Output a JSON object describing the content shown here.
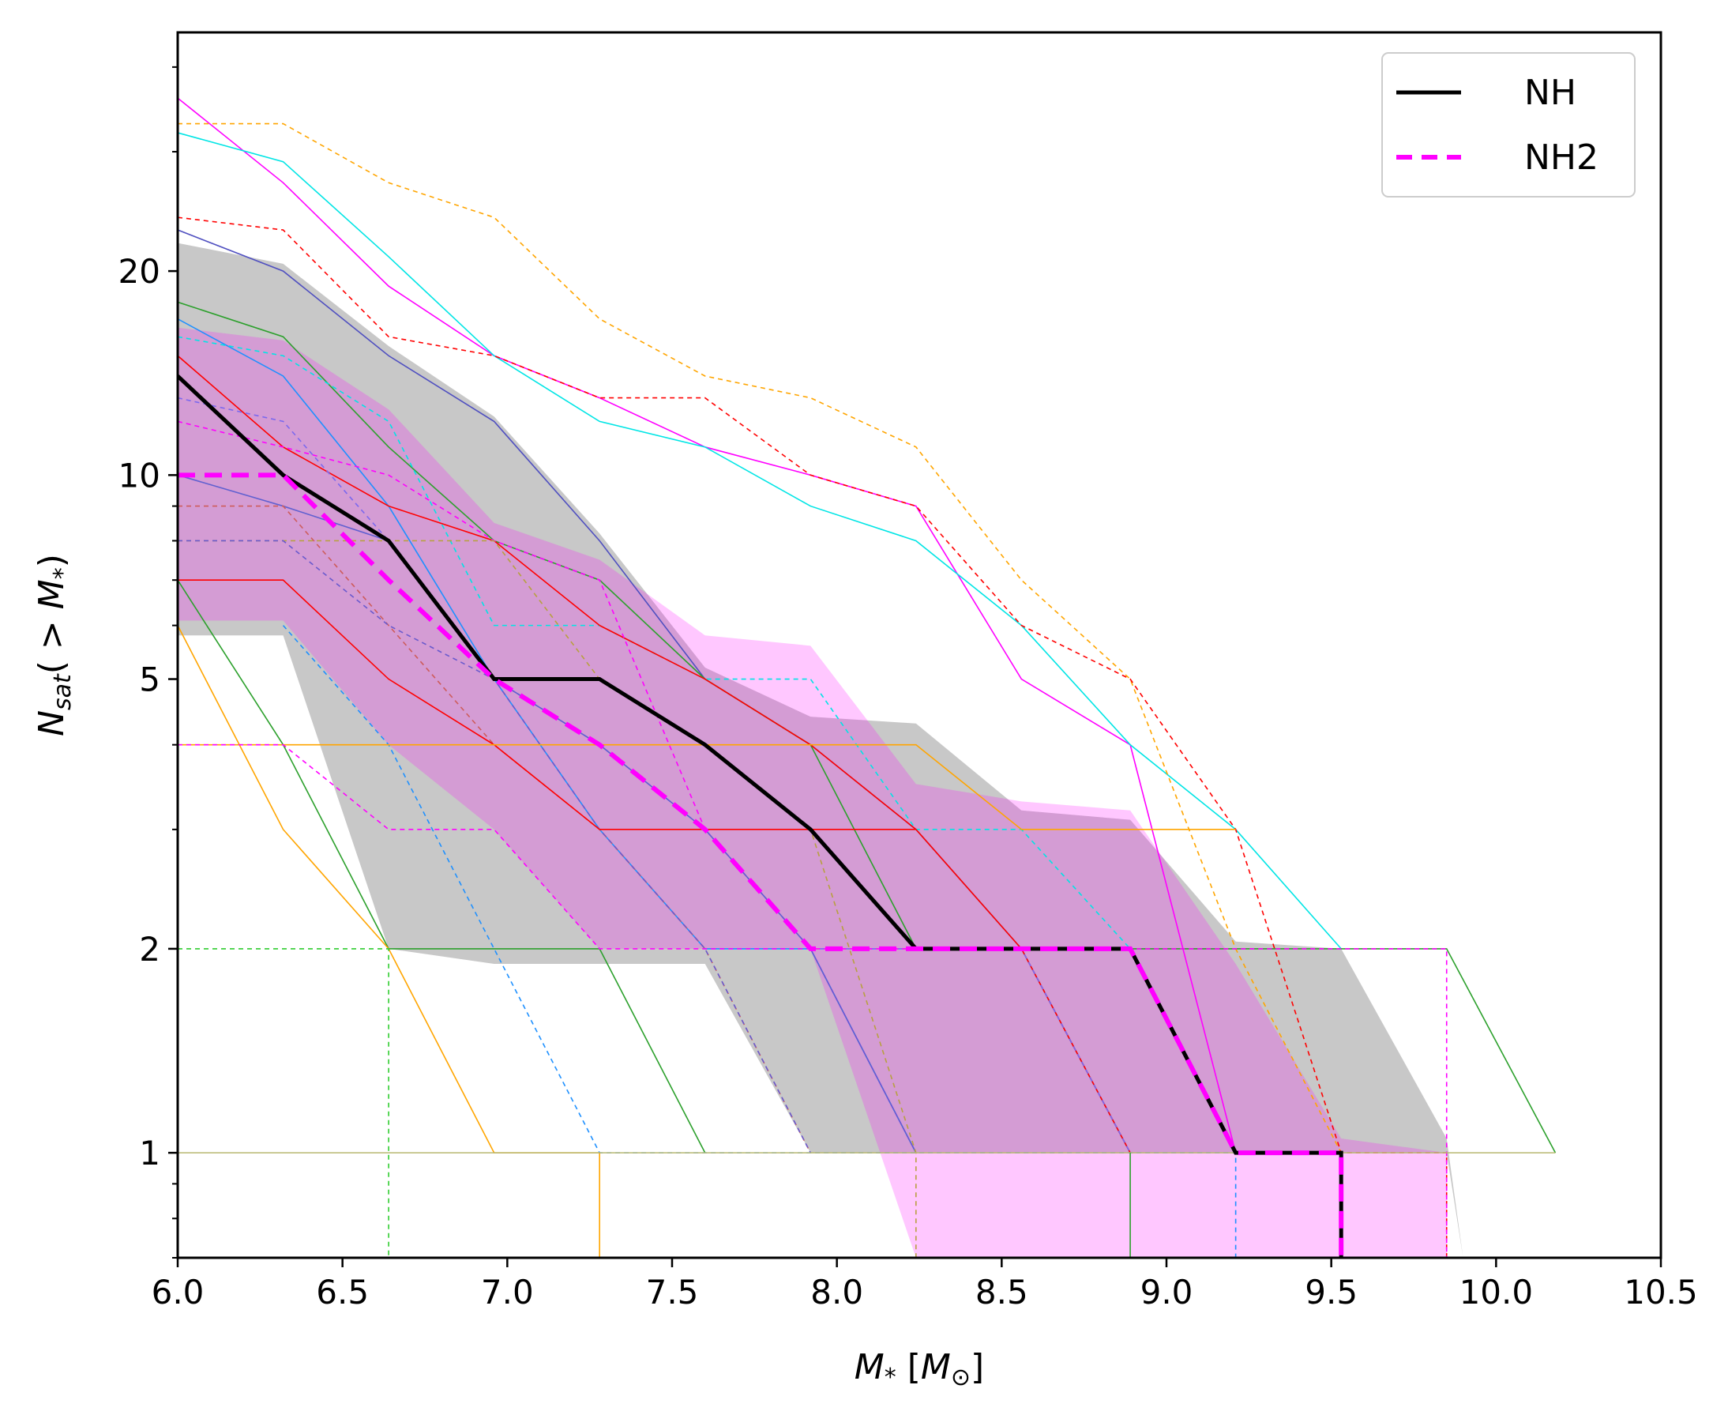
{
  "chart_data": {
    "type": "line",
    "xlabel": "M_* [M_⊙]",
    "ylabel": "N_sat(>M_*)",
    "xlim": [
      6.0,
      10.5
    ],
    "ylim": [
      0.7,
      45
    ],
    "yscale": "log",
    "grid": false,
    "legend_position": "top-right",
    "xticks": [
      6.0,
      6.5,
      7.0,
      7.5,
      8.0,
      8.5,
      9.0,
      9.5,
      10.0,
      10.5
    ],
    "xtick_labels": [
      "6.0",
      "6.5",
      "7.0",
      "7.5",
      "8.0",
      "8.5",
      "9.0",
      "9.5",
      "10.0",
      "10.5"
    ],
    "yticks": [
      1,
      2,
      5,
      10,
      20
    ],
    "ytick_labels": [
      "1",
      "2",
      "5",
      "10",
      "20"
    ],
    "legend": [
      {
        "label": "NH",
        "color": "#000000",
        "style": "solid"
      },
      {
        "label": "NH2",
        "color": "#ff00ff",
        "style": "dashed"
      }
    ],
    "bands": [
      {
        "label": "NH",
        "color": "#c8c8c8",
        "x": [
          6.0,
          6.32,
          6.64,
          6.96,
          7.28,
          7.6,
          7.92,
          8.24,
          8.56,
          8.89,
          9.21,
          9.53,
          9.85,
          9.9
        ],
        "upper": [
          22,
          20.5,
          15.5,
          12.2,
          8.2,
          5.2,
          4.4,
          4.3,
          3.2,
          3.1,
          2.05,
          2.0,
          1.05,
          0.7
        ],
        "lower": [
          5.8,
          5.8,
          2.0,
          1.9,
          1.9,
          1.9,
          1.0,
          1.0,
          1.0,
          1.0,
          1.0,
          1.0,
          1.0,
          0.7
        ]
      },
      {
        "label": "NH2",
        "color": "#ff00ff",
        "x": [
          6.0,
          6.32,
          6.64,
          6.96,
          7.28,
          7.6,
          7.92,
          8.24,
          8.56,
          8.89,
          9.21,
          9.53,
          9.85
        ],
        "upper": [
          16.5,
          15.8,
          12.5,
          8.5,
          7.5,
          5.8,
          5.6,
          3.5,
          3.3,
          3.2,
          1.9,
          1.05,
          1.0
        ],
        "lower": [
          6.1,
          6.1,
          4.0,
          3.0,
          2.0,
          2.0,
          2.0,
          0.7,
          0.7,
          0.7,
          0.7,
          0.7,
          0.7
        ]
      }
    ],
    "series": [
      {
        "name": "NH",
        "color": "#000000",
        "style": "solid",
        "width": 5,
        "x": [
          6.0,
          6.32,
          6.64,
          6.96,
          7.28,
          7.6,
          7.92,
          8.24,
          8.56,
          8.89,
          9.21,
          9.53,
          9.53
        ],
        "y": [
          14,
          10,
          8,
          5,
          5,
          4,
          3,
          2,
          2,
          2,
          1,
          1,
          0.7
        ]
      },
      {
        "name": "NH2",
        "color": "#ff00ff",
        "style": "dashed",
        "width": 6,
        "x": [
          6.0,
          6.32,
          6.64,
          6.96,
          7.28,
          7.6,
          7.92,
          8.24,
          8.56,
          8.89,
          9.21,
          9.53,
          9.53
        ],
        "y": [
          10,
          10,
          7,
          5,
          4,
          3,
          2,
          2,
          2,
          2,
          1,
          1,
          0.7
        ]
      }
    ],
    "individual_lines": [
      {
        "color": "#ff00ff",
        "style": "solid",
        "x": [
          6.0,
          6.32,
          6.64,
          6.96,
          7.28,
          7.6,
          7.92,
          8.24,
          8.56,
          8.89,
          9.21
        ],
        "y": [
          36,
          27,
          19,
          15,
          13,
          11,
          10,
          9,
          5,
          4,
          1
        ]
      },
      {
        "color": "#00e5e5",
        "style": "solid",
        "x": [
          6.0,
          6.32,
          6.64,
          6.96,
          7.28,
          7.6,
          7.92,
          8.24,
          8.56,
          8.89,
          9.21,
          9.53
        ],
        "y": [
          32,
          29,
          21,
          15,
          12,
          11,
          9,
          8,
          6,
          4,
          3,
          2
        ]
      },
      {
        "color": "#ffa500",
        "style": "dashed",
        "x": [
          6.0,
          6.32,
          6.64,
          6.96,
          7.28,
          7.6,
          7.92,
          8.24,
          8.56,
          8.89,
          9.21,
          9.53
        ],
        "y": [
          33,
          33,
          27,
          24,
          17,
          14,
          13,
          11,
          7,
          5,
          2,
          1
        ]
      },
      {
        "color": "#ff0000",
        "style": "dashed",
        "x": [
          6.0,
          6.32,
          6.64,
          6.96,
          7.28,
          7.6,
          7.92,
          8.24,
          8.56,
          8.89,
          9.21,
          9.53,
          9.85,
          9.85
        ],
        "y": [
          24,
          23,
          16,
          15,
          13,
          13,
          10,
          9,
          6,
          5,
          3,
          1,
          1,
          0.7
        ]
      },
      {
        "color": "#5050c0",
        "style": "solid",
        "x": [
          6.0,
          6.32,
          6.64,
          6.96,
          7.28,
          7.6,
          7.92,
          8.24,
          8.56,
          8.89
        ],
        "y": [
          23,
          20,
          15,
          12,
          8,
          5,
          4,
          3,
          2,
          1
        ]
      },
      {
        "color": "#2ca02c",
        "style": "solid",
        "x": [
          6.0,
          6.32,
          6.64,
          6.96,
          7.28,
          7.6,
          7.92,
          8.24,
          8.56,
          8.89,
          9.21,
          9.53,
          9.85,
          10.18
        ],
        "y": [
          18,
          16,
          11,
          8,
          7,
          5,
          4,
          2,
          2,
          2,
          2,
          2,
          2,
          1
        ]
      },
      {
        "color": "#1e90ff",
        "style": "solid",
        "x": [
          6.0,
          6.32,
          6.64,
          6.96,
          7.28,
          7.6,
          7.92,
          8.24
        ],
        "y": [
          17,
          14,
          9,
          5,
          3,
          2,
          2,
          1
        ]
      },
      {
        "color": "#00e5e5",
        "style": "dashed",
        "x": [
          6.0,
          6.32,
          6.64,
          6.96,
          7.28,
          7.6,
          7.92,
          8.24,
          8.56,
          8.89,
          9.21,
          9.53
        ],
        "y": [
          16,
          15,
          12,
          6,
          6,
          5,
          5,
          3,
          3,
          2,
          1,
          1
        ]
      },
      {
        "color": "#ff0000",
        "style": "solid",
        "x": [
          6.0,
          6.32,
          6.64,
          6.96,
          7.28,
          7.6,
          7.92,
          8.24,
          8.56,
          8.89
        ],
        "y": [
          15,
          11,
          9,
          8,
          6,
          5,
          4,
          3,
          2,
          1
        ]
      },
      {
        "color": "#7b68ee",
        "style": "dashed",
        "x": [
          6.0,
          6.32,
          6.64,
          6.96,
          7.28,
          7.6,
          7.92,
          8.24,
          8.56,
          8.89
        ],
        "y": [
          13,
          12,
          8,
          5,
          4,
          3,
          2,
          2,
          2,
          1
        ]
      },
      {
        "color": "#ff00ff",
        "style": "dashed",
        "x": [
          6.0,
          6.32,
          6.64,
          6.96,
          7.28,
          7.6,
          7.92,
          8.24
        ],
        "y": [
          12,
          11,
          10,
          8,
          7,
          3,
          2,
          1
        ]
      },
      {
        "color": "#6060d0",
        "style": "solid",
        "x": [
          6.0,
          6.32,
          6.64,
          6.96,
          7.28,
          7.6,
          7.92,
          8.24
        ],
        "y": [
          10,
          9,
          8,
          5,
          4,
          3,
          2,
          1
        ]
      },
      {
        "color": "#cd5c5c",
        "style": "dashed",
        "x": [
          6.0,
          6.32,
          6.64,
          6.96,
          7.28,
          7.6,
          7.92
        ],
        "y": [
          9,
          9,
          6,
          4,
          3,
          2,
          1
        ]
      },
      {
        "color": "#b8a040",
        "style": "dashed",
        "x": [
          6.0,
          6.32,
          6.64,
          6.96,
          7.28,
          7.6,
          7.92,
          8.24,
          8.24
        ],
        "y": [
          8,
          8,
          8,
          8,
          5,
          4,
          3,
          1,
          0.7
        ]
      },
      {
        "color": "#6a5acd",
        "style": "dashed",
        "x": [
          6.0,
          6.32,
          6.64,
          6.96,
          7.28,
          7.6,
          7.92
        ],
        "y": [
          8,
          8,
          6,
          5,
          3,
          2,
          1
        ]
      },
      {
        "color": "#ff0000",
        "style": "solid",
        "x": [
          6.0,
          6.32,
          6.64,
          6.96,
          7.28,
          7.6,
          7.92,
          8.24
        ],
        "y": [
          7,
          7,
          5,
          4,
          3,
          3,
          3,
          3
        ]
      },
      {
        "color": "#2ca02c",
        "style": "solid",
        "x": [
          6.0,
          6.32,
          6.64,
          6.96,
          7.28,
          7.6
        ],
        "y": [
          7,
          4,
          2,
          2,
          2,
          1
        ]
      },
      {
        "color": "#1e90ff",
        "style": "dashed",
        "x": [
          6.32,
          6.64,
          6.96,
          7.28,
          7.6,
          7.92,
          8.24,
          8.56,
          8.89,
          9.21,
          9.21
        ],
        "y": [
          6,
          4,
          2,
          1,
          1,
          1,
          1,
          1,
          1,
          1,
          0.7
        ]
      },
      {
        "color": "#ffa500",
        "style": "solid",
        "x": [
          6.0,
          6.32,
          6.64,
          6.96,
          7.28,
          7.28
        ],
        "y": [
          6,
          3,
          2,
          1,
          1,
          0.7
        ]
      },
      {
        "color": "#ffa500",
        "style": "solid",
        "x": [
          6.0,
          6.32,
          6.64,
          6.96,
          7.28,
          7.6,
          7.92,
          8.24,
          8.56,
          8.89,
          9.21
        ],
        "y": [
          4,
          4,
          4,
          4,
          4,
          4,
          4,
          4,
          3,
          3,
          3
        ]
      },
      {
        "color": "#ff00ff",
        "style": "dashed",
        "x": [
          6.0,
          6.32,
          6.64,
          6.96,
          7.28,
          7.6,
          7.92,
          8.24,
          8.56,
          8.89,
          9.21,
          9.53,
          9.85,
          9.85
        ],
        "y": [
          4,
          4,
          3,
          3,
          2,
          2,
          2,
          2,
          2,
          2,
          2,
          2,
          2,
          0.7
        ]
      },
      {
        "color": "#2ecc2e",
        "style": "dashed",
        "x": [
          6.0,
          6.32,
          6.64,
          6.64
        ],
        "y": [
          2,
          2,
          2,
          0.7
        ]
      },
      {
        "color": "#b8b870",
        "style": "solid",
        "x": [
          6.0,
          6.32,
          6.64,
          6.96,
          7.28,
          7.6,
          7.92,
          8.24,
          8.56,
          8.89,
          9.21,
          9.53,
          9.85,
          10.18
        ],
        "y": [
          1,
          1,
          1,
          1,
          1,
          1,
          1,
          1,
          1,
          1,
          1,
          1,
          1,
          1
        ]
      },
      {
        "color": "#2ca02c",
        "style": "solid",
        "x": [
          8.89,
          8.89
        ],
        "y": [
          1,
          0.7
        ]
      }
    ]
  }
}
